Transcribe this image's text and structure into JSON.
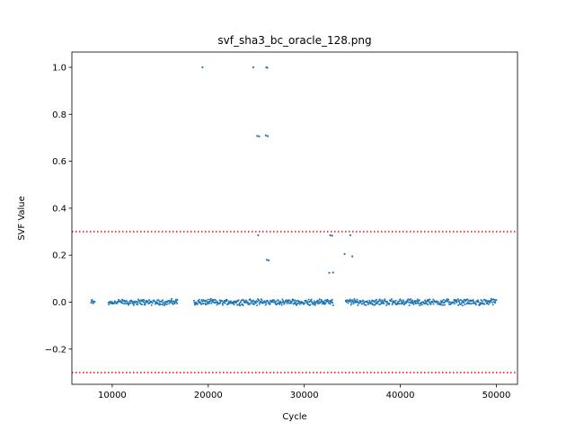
{
  "chart_data": {
    "type": "scatter",
    "title": "svf_sha3_bc_oracle_128.png",
    "xlabel": "Cycle",
    "ylabel": "SVF Value",
    "xlim": [
      5800,
      52200
    ],
    "ylim": [
      -0.35,
      1.065
    ],
    "xticks": [
      10000,
      20000,
      30000,
      40000,
      50000
    ],
    "xtick_labels": [
      "10000",
      "20000",
      "30000",
      "40000",
      "50000"
    ],
    "yticks": [
      -0.2,
      0.0,
      0.2,
      0.4,
      0.6,
      0.8,
      1.0
    ],
    "ytick_labels": [
      "−0.2",
      "0.0",
      "0.2",
      "0.4",
      "0.6",
      "0.8",
      "1.0"
    ],
    "grid": false,
    "marker_color": "#1f77b4",
    "threshold_color": "#ff0000",
    "thresholds": [
      0.3,
      -0.3
    ],
    "baseline_noise": 0.01,
    "baseline_segments": [
      [
        7800,
        8200
      ],
      [
        9600,
        16800
      ],
      [
        18500,
        33000
      ],
      [
        34300,
        50000
      ]
    ],
    "series": [
      {
        "outliers": {
          "x": [
            19400,
            24700,
            26050,
            26150,
            25100,
            25300,
            26000,
            26200,
            25200,
            26100,
            26300,
            32700,
            32900,
            32600,
            33000,
            34200,
            34800,
            35000
          ],
          "y": [
            1.0,
            1.0,
            1.0,
            0.998,
            0.708,
            0.706,
            0.71,
            0.707,
            0.285,
            0.18,
            0.178,
            0.285,
            0.283,
            0.125,
            0.126,
            0.205,
            0.285,
            0.195
          ]
        }
      }
    ]
  }
}
